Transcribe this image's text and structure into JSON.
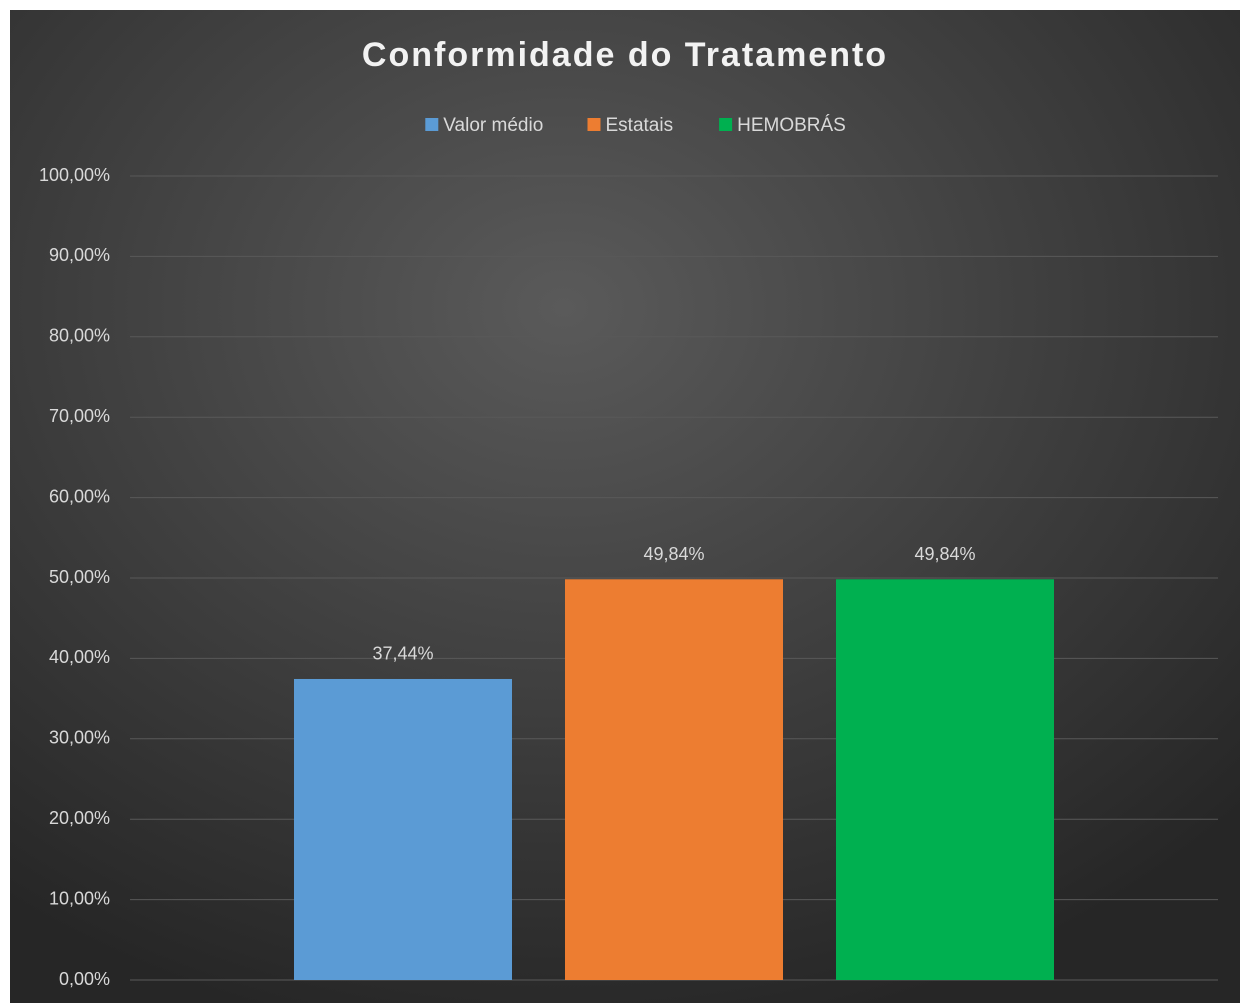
{
  "chart_data": {
    "type": "bar",
    "title": "Conformidade do Tratamento",
    "categories": [
      null
    ],
    "series": [
      {
        "name": "Valor médio",
        "color": "#5b9bd5",
        "values": [
          37.44
        ],
        "value_labels": [
          "37,44%"
        ]
      },
      {
        "name": "Estatais",
        "color": "#ed7d31",
        "values": [
          49.84
        ],
        "value_labels": [
          "49,84%"
        ]
      },
      {
        "name": "HEMOBRÁS",
        "color": "#00b050",
        "values": [
          49.84
        ],
        "value_labels": [
          "49,84%"
        ]
      }
    ],
    "ylim": [
      0,
      100
    ],
    "yticks": [
      {
        "value": 0,
        "label": "0,00%"
      },
      {
        "value": 10,
        "label": "10,00%"
      },
      {
        "value": 20,
        "label": "20,00%"
      },
      {
        "value": 30,
        "label": "30,00%"
      },
      {
        "value": 40,
        "label": "40,00%"
      },
      {
        "value": 50,
        "label": "50,00%"
      },
      {
        "value": 60,
        "label": "60,00%"
      },
      {
        "value": 70,
        "label": "70,00%"
      },
      {
        "value": 80,
        "label": "80,00%"
      },
      {
        "value": 90,
        "label": "90,00%"
      },
      {
        "value": 100,
        "label": "100,00%"
      }
    ],
    "grid": true,
    "legend": "top"
  }
}
